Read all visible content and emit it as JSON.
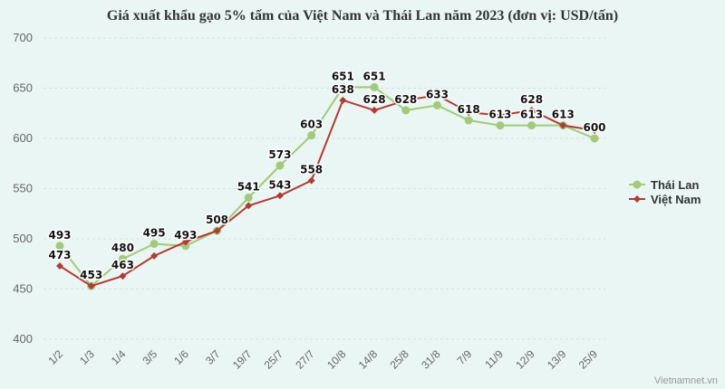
{
  "chart_data": {
    "type": "line",
    "title": "Giá xuất khẩu gạo 5% tấm của Việt Nam và Thái Lan năm 2023 (đơn vị: USD/tấn)",
    "categories": [
      "1/2",
      "1/3",
      "1/4",
      "3/5",
      "1/6",
      "3/7",
      "19/7",
      "25/7",
      "27/7",
      "10/8",
      "14/8",
      "25/8",
      "31/8",
      "7/9",
      "11/9",
      "12/9",
      "13/9",
      "25/9"
    ],
    "ylim": [
      400,
      700
    ],
    "yticks": [
      400,
      450,
      500,
      550,
      600,
      650,
      700
    ],
    "grid": true,
    "legend_position": "right",
    "series": [
      {
        "name": "Thái Lan",
        "color": "#a3c97a",
        "marker": "circle",
        "values": [
          493,
          453,
          480,
          495,
          493,
          508,
          541,
          573,
          603,
          651,
          651,
          628,
          633,
          618,
          613,
          613,
          613,
          600
        ],
        "labels": [
          "493",
          null,
          "480",
          "495",
          "493",
          "508",
          "541",
          "573",
          "603",
          "651",
          "651",
          "628",
          "633",
          "618",
          "613",
          "613",
          "613",
          "600"
        ]
      },
      {
        "name": "Việt Nam",
        "color": "#b23b32",
        "marker": "diamond",
        "values": [
          473,
          453,
          463,
          483,
          497,
          508,
          533,
          543,
          558,
          638,
          628,
          638,
          643,
          626,
          623,
          628,
          613,
          608
        ],
        "labels": [
          "473",
          "453",
          "463",
          null,
          null,
          null,
          null,
          "543",
          "558",
          "638",
          "628",
          null,
          null,
          null,
          null,
          "628",
          null,
          null
        ]
      }
    ]
  },
  "credit": "Vietnamnet.vn"
}
